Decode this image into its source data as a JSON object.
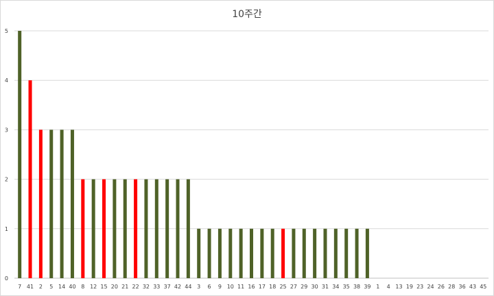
{
  "chart_data": {
    "type": "bar",
    "title": "10주간",
    "categories": [
      "7",
      "41",
      "2",
      "5",
      "14",
      "40",
      "8",
      "12",
      "15",
      "20",
      "21",
      "22",
      "32",
      "33",
      "37",
      "42",
      "44",
      "3",
      "6",
      "9",
      "10",
      "11",
      "16",
      "17",
      "18",
      "25",
      "27",
      "29",
      "30",
      "31",
      "34",
      "35",
      "38",
      "39",
      "1",
      "4",
      "13",
      "19",
      "23",
      "24",
      "26",
      "28",
      "36",
      "43",
      "45"
    ],
    "values": [
      5,
      4,
      3,
      3,
      3,
      3,
      2,
      2,
      2,
      2,
      2,
      2,
      2,
      2,
      2,
      2,
      2,
      1,
      1,
      1,
      1,
      1,
      1,
      1,
      1,
      1,
      1,
      1,
      1,
      1,
      1,
      1,
      1,
      1,
      0,
      0,
      0,
      0,
      0,
      0,
      0,
      0,
      0,
      0,
      0
    ],
    "highlighted": [
      "41",
      "2",
      "8",
      "15",
      "22",
      "25"
    ],
    "colors": {
      "default": "#4f6228",
      "highlight": "#ff0000",
      "gridline": "#d9d9d9",
      "axis": "#bfbfbf"
    },
    "ylim": [
      0,
      5
    ],
    "yticks": [
      0,
      1,
      2,
      3,
      4,
      5
    ],
    "grid": true,
    "xlabel": "",
    "ylabel": ""
  }
}
